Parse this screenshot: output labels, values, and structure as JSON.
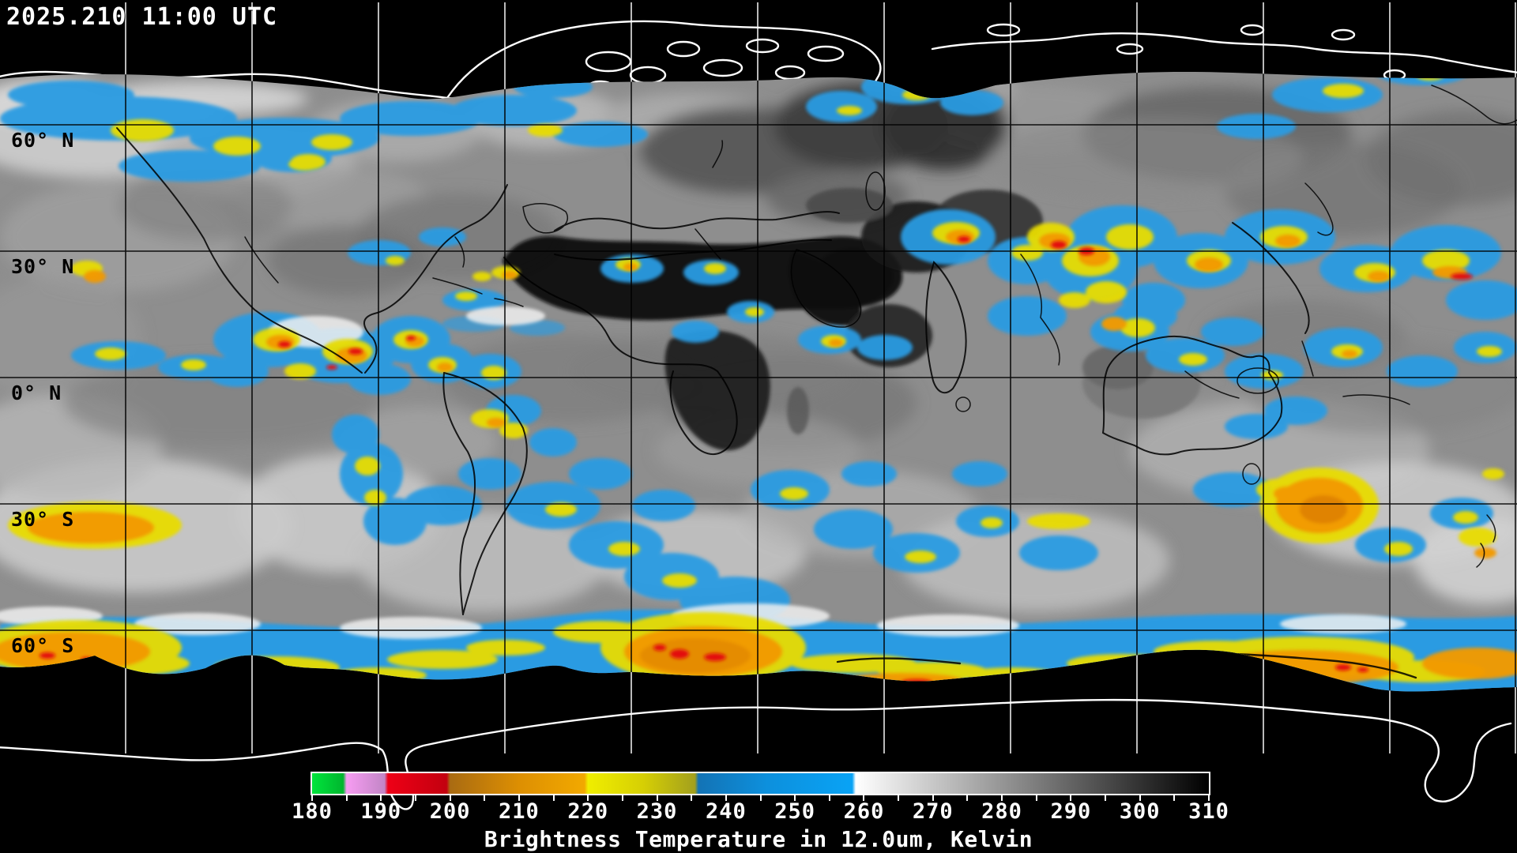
{
  "header": {
    "timestamp": "2025.210 11:00 UTC"
  },
  "map": {
    "lat_labels": [
      {
        "text": "60° N",
        "deg": 60
      },
      {
        "text": "30° N",
        "deg": 30
      },
      {
        "text": "0° N",
        "deg": 0
      },
      {
        "text": "30° S",
        "deg": -30
      },
      {
        "text": "60° S",
        "deg": -60
      }
    ],
    "grid": {
      "lat_step_deg": 30,
      "lon_step_deg": 30
    }
  },
  "colorbar": {
    "caption": "Brightness Temperature in 12.0um, Kelvin",
    "unit": "Kelvin",
    "min": 180,
    "max": 310,
    "tick_step": 5,
    "label_step": 10,
    "tick_labels": [
      "180",
      "190",
      "200",
      "210",
      "220",
      "230",
      "240",
      "250",
      "260",
      "270",
      "280",
      "290",
      "300",
      "310"
    ],
    "stops": [
      {
        "v": 180,
        "c": "#00e53c"
      },
      {
        "v": 184.5,
        "c": "#00b62e"
      },
      {
        "v": 185,
        "c": "#f79cf2"
      },
      {
        "v": 190.5,
        "c": "#c286c6"
      },
      {
        "v": 191,
        "c": "#ee0016"
      },
      {
        "v": 199.5,
        "c": "#c3000f"
      },
      {
        "v": 200,
        "c": "#a96b12"
      },
      {
        "v": 210,
        "c": "#dd8f02"
      },
      {
        "v": 219.5,
        "c": "#f2a900"
      },
      {
        "v": 220,
        "c": "#f0ee00"
      },
      {
        "v": 228,
        "c": "#d6cf04"
      },
      {
        "v": 235.5,
        "c": "#a3a01d"
      },
      {
        "v": 236,
        "c": "#1373b5"
      },
      {
        "v": 246,
        "c": "#0d90dd"
      },
      {
        "v": 258.3,
        "c": "#09a3f5"
      },
      {
        "v": 258.8,
        "c": "#ffffff"
      },
      {
        "v": 310,
        "c": "#000000"
      }
    ]
  }
}
